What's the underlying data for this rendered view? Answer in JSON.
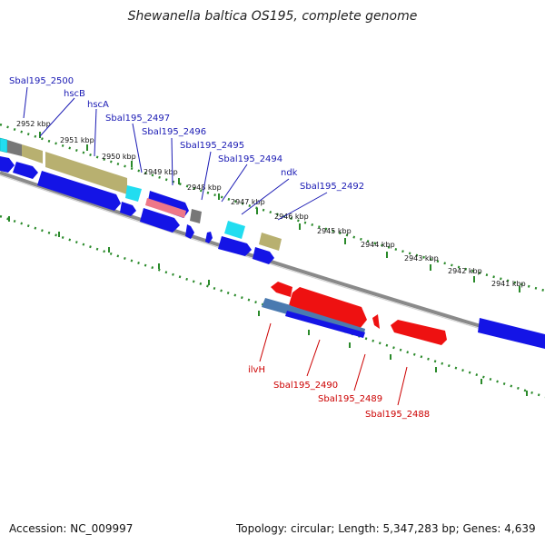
{
  "title": "Shewanella baltica OS195, complete genome",
  "footer": {
    "accession": "Accession: NC_009997",
    "stats": "Topology: circular; Length: 5,347,283 bp; Genes: 4,639"
  },
  "colors": {
    "background": "#ffffff",
    "forward_label": "#1a1ab4",
    "reverse_label": "#cc0000",
    "blue_gene": "#1414e6",
    "red_gene": "#ee1111",
    "cyan_gene": "#22ddf0",
    "olive_gene": "#b8b070",
    "grey_gene": "#777777",
    "tick_green": "#338833",
    "backbone": "#888888"
  },
  "scale_labels": [
    "2952 kbp",
    "2951 kbp",
    "2950 kbp",
    "2949 kbp",
    "2948 kbp",
    "2947 kbp",
    "2946 kbp",
    "2945 kbp",
    "2944 kbp",
    "2943 kbp",
    "2942 kbp",
    "2941 kbp"
  ],
  "forward_genes": [
    "Sbal195_2500",
    "hscB",
    "hscA",
    "Sbal195_2497",
    "Sbal195_2496",
    "Sbal195_2495",
    "Sbal195_2494",
    "ndk",
    "Sbal195_2492"
  ],
  "reverse_genes": [
    "ilvH",
    "Sbal195_2490",
    "Sbal195_2489",
    "Sbal195_2488"
  ]
}
